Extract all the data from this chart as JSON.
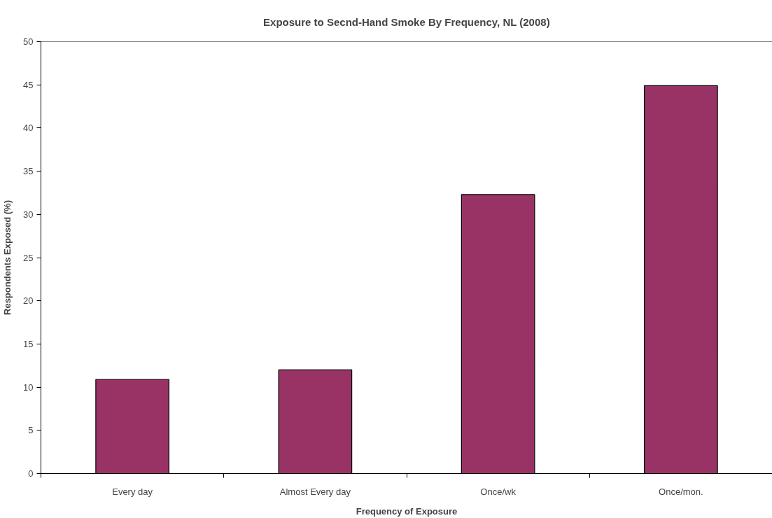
{
  "chart_data": {
    "type": "bar",
    "title": "Exposure to Secnd-Hand Smoke By Frequency, NL (2008)",
    "xlabel": "Frequency of Exposure",
    "ylabel": "Respondents Exposed (%)",
    "categories": [
      "Every day",
      "Almost Every day",
      "Once/wk",
      "Once/mon."
    ],
    "values": [
      10.9,
      12.0,
      32.3,
      44.9
    ],
    "color": "#993366",
    "ylim": [
      0,
      50
    ],
    "yticks": [
      0,
      5,
      10,
      15,
      20,
      25,
      30,
      35,
      40,
      45,
      50
    ]
  }
}
